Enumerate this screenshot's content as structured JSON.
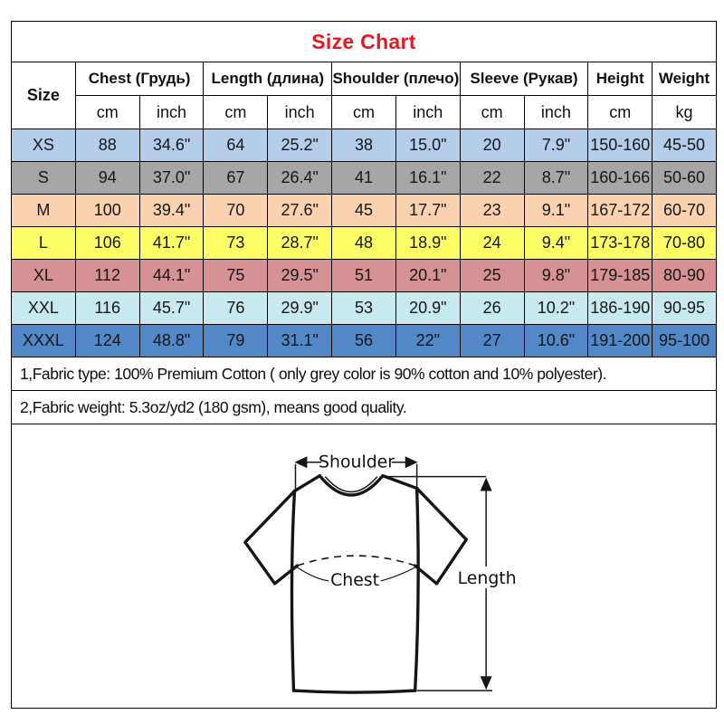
{
  "title": "Size Chart",
  "title_color": "#e01b22",
  "table": {
    "size_header": "Size",
    "groups": [
      {
        "label": "Chest  (Грудь)",
        "units": [
          "cm",
          "inch"
        ]
      },
      {
        "label": "Length (длина)",
        "units": [
          "cm",
          "inch"
        ]
      },
      {
        "label": "Shoulder (плечо)",
        "units": [
          "cm",
          "inch"
        ]
      },
      {
        "label": "Sleeve (Рукав)",
        "units": [
          "cm",
          "inch"
        ]
      },
      {
        "label": "Height",
        "units": [
          "cm"
        ]
      },
      {
        "label": "Weight",
        "units": [
          "kg"
        ]
      }
    ],
    "rows": [
      {
        "size": "XS",
        "color": "#b4cdea",
        "cells": [
          "88",
          "34.6\"",
          "64",
          "25.2\"",
          "38",
          "15.0\"",
          "20",
          "7.9\"",
          "150-160",
          "45-50"
        ]
      },
      {
        "size": "S",
        "color": "#a6a6a6",
        "cells": [
          "94",
          "37.0\"",
          "67",
          "26.4\"",
          "41",
          "16.1\"",
          "22",
          "8.7\"",
          "160-166",
          "50-60"
        ]
      },
      {
        "size": "M",
        "color": "#fad2b0",
        "cells": [
          "100",
          "39.4\"",
          "70",
          "27.6\"",
          "45",
          "17.7\"",
          "23",
          "9.1\"",
          "167-172",
          "60-70"
        ]
      },
      {
        "size": "L",
        "color": "#feff66",
        "cells": [
          "106",
          "41.7\"",
          "73",
          "28.7\"",
          "48",
          "18.9\"",
          "24",
          "9.4\"",
          "173-178",
          "70-80"
        ]
      },
      {
        "size": "XL",
        "color": "#d69194",
        "cells": [
          "112",
          "44.1\"",
          "75",
          "29.5\"",
          "51",
          "20.1\"",
          "25",
          "9.8\"",
          "179-185",
          "80-90"
        ]
      },
      {
        "size": "XXL",
        "color": "#c8e9ef",
        "cells": [
          "116",
          "45.7\"",
          "76",
          "29.9\"",
          "53",
          "20.9\"",
          "26",
          "10.2\"",
          "186-190",
          "90-95"
        ]
      },
      {
        "size": "XXXL",
        "color": "#5287c8",
        "cells": [
          "124",
          "48.8\"",
          "79",
          "31.1\"",
          "56",
          "22\"",
          "27",
          "10.6\"",
          "191-200",
          "95-100"
        ]
      }
    ]
  },
  "notes": [
    "1,Fabric type: 100% Premium Cotton ( only grey color is 90% cotton and 10% polyester).",
    "2,Fabric weight: 5.3oz/yd2 (180 gsm), means good quality."
  ],
  "diagram": {
    "shoulder_label": "Shoulder",
    "chest_label": "Chest",
    "length_label": "Length"
  }
}
